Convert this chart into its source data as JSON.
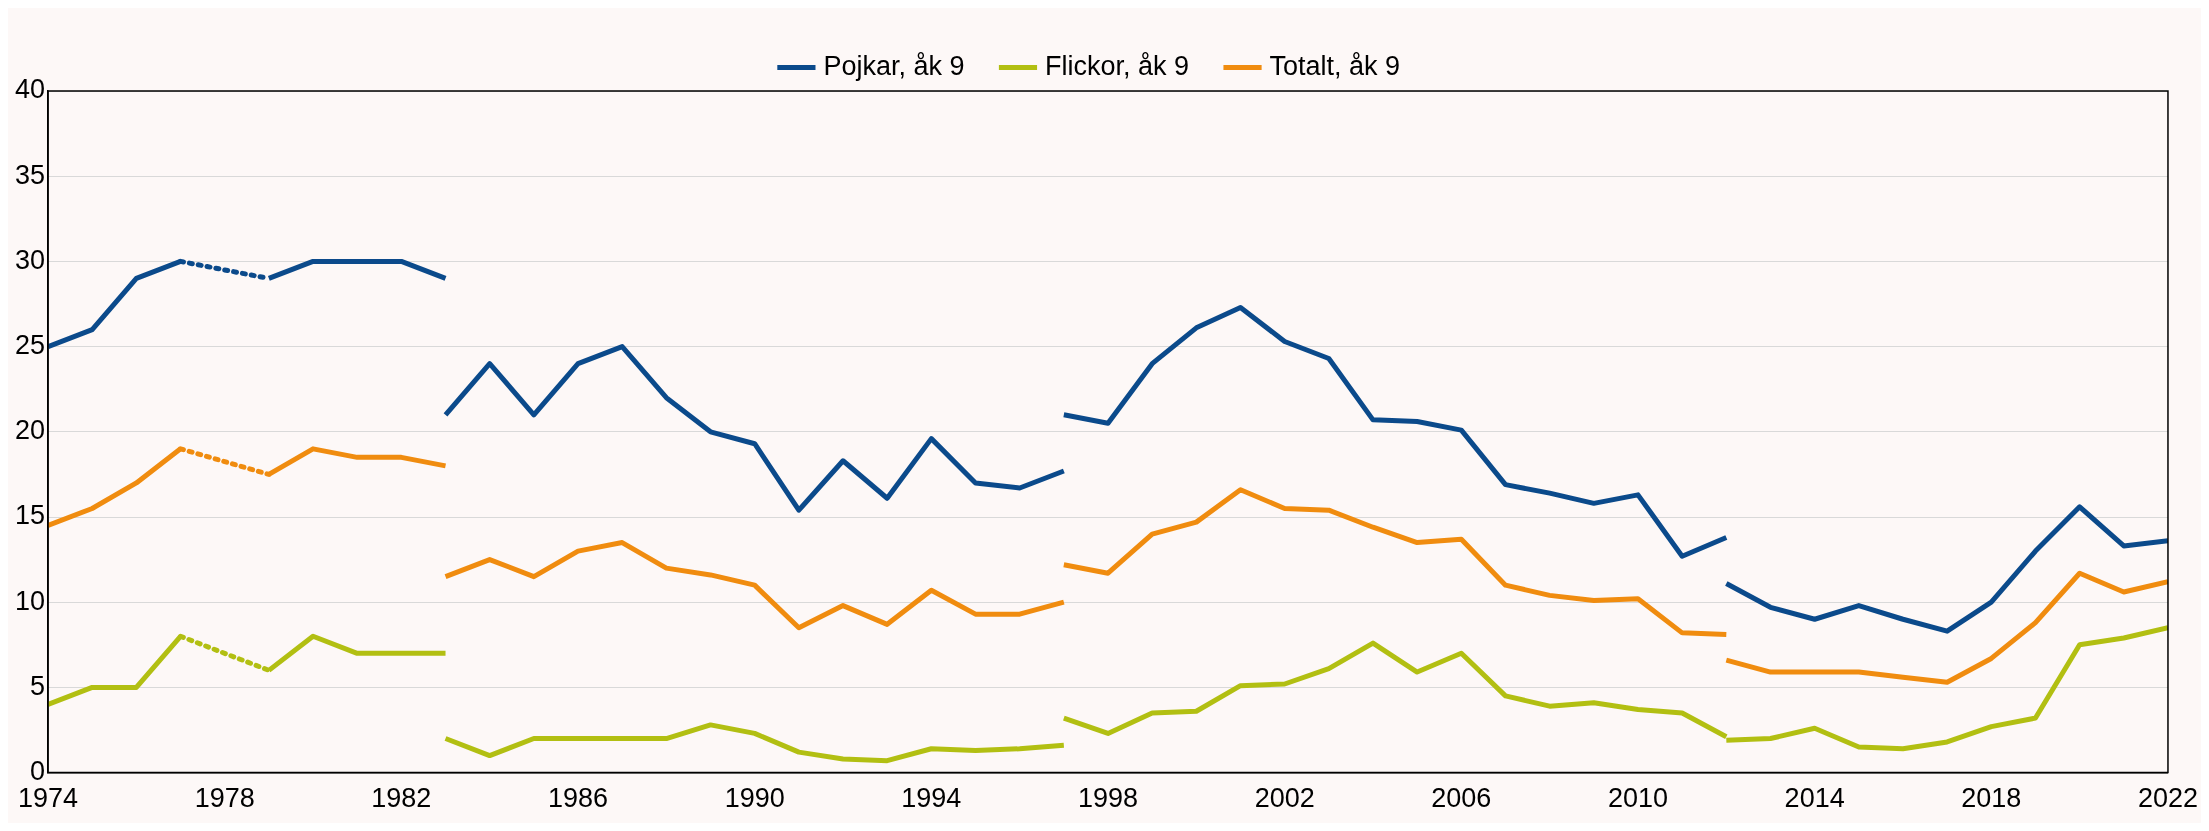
{
  "chart_data": {
    "type": "line",
    "xlim": [
      1974,
      2022
    ],
    "xticks": [
      1974,
      1978,
      1982,
      1986,
      1990,
      1994,
      1998,
      2002,
      2006,
      2010,
      2014,
      2018,
      2022
    ],
    "ylim": [
      0,
      40
    ],
    "yticks": [
      0,
      5,
      10,
      15,
      20,
      25,
      30,
      35,
      40
    ],
    "grid": "y",
    "legend": "top",
    "marker": "none",
    "line_style": "solid",
    "series": [
      {
        "name": "Pojkar, åk 9",
        "color": "#0b4a8b",
        "x": [
          1974,
          1975,
          1976,
          1977
        ],
        "values": [
          25,
          26,
          29,
          30
        ]
      },
      {
        "color": "#0b4a8b",
        "line_style": "dotted",
        "x": [
          1977,
          1979
        ],
        "values": [
          30,
          29
        ]
      },
      {
        "color": "#0b4a8b",
        "x": [
          1979,
          1980,
          1981,
          1982,
          1983
        ],
        "values": [
          29,
          30,
          30,
          30,
          29
        ]
      },
      {
        "color": "#0b4a8b",
        "x": [
          1983,
          1984,
          1985,
          1986,
          1987,
          1988,
          1989,
          1990,
          1991,
          1992,
          1993,
          1994,
          1995,
          1996,
          1997
        ],
        "values": [
          21,
          24,
          21,
          24,
          25,
          22,
          20,
          19.3,
          15.4,
          18.3,
          16.1,
          19.6,
          17,
          16.7,
          17.7
        ]
      },
      {
        "color": "#0b4a8b",
        "x": [
          1997,
          1998,
          1999,
          2000,
          2001,
          2002,
          2003,
          2004,
          2005,
          2006,
          2007,
          2008,
          2009,
          2010,
          2011,
          2012
        ],
        "values": [
          21,
          20.5,
          24,
          26.1,
          27.3,
          25.3,
          24.3,
          20.7,
          20.6,
          20.1,
          16.9,
          16.4,
          15.8,
          16.3,
          12.7,
          13.8
        ]
      },
      {
        "color": "#0b4a8b",
        "x": [
          2012,
          2013,
          2014,
          2015,
          2016,
          2017,
          2018,
          2019,
          2020,
          2021,
          2022
        ],
        "values": [
          11.1,
          9.7,
          9,
          9.8,
          9,
          8.3,
          10,
          13,
          15.6,
          13.3,
          13.6
        ]
      },
      {
        "name": "Flickor, åk 9",
        "color": "#b2bf12",
        "x": [
          1974,
          1975,
          1976,
          1977
        ],
        "values": [
          4,
          5,
          5,
          8
        ]
      },
      {
        "color": "#b2bf12",
        "line_style": "dotted",
        "x": [
          1977,
          1979
        ],
        "values": [
          8,
          6
        ]
      },
      {
        "color": "#b2bf12",
        "x": [
          1979,
          1980,
          1981,
          1982,
          1983
        ],
        "values": [
          6,
          8,
          7,
          7,
          7
        ]
      },
      {
        "color": "#b2bf12",
        "x": [
          1983,
          1984,
          1985,
          1986,
          1987,
          1988,
          1989,
          1990,
          1991,
          1992,
          1993,
          1994,
          1995,
          1996,
          1997
        ],
        "values": [
          2,
          1,
          2,
          2,
          2,
          2,
          2.8,
          2.3,
          1.2,
          0.8,
          0.7,
          1.4,
          1.3,
          1.4,
          1.6
        ]
      },
      {
        "color": "#b2bf12",
        "x": [
          1997,
          1998,
          1999,
          2000,
          2001,
          2002,
          2003,
          2004,
          2005,
          2006,
          2007,
          2008,
          2009,
          2010,
          2011,
          2012
        ],
        "values": [
          3.2,
          2.3,
          3.5,
          3.6,
          5.1,
          5.2,
          6.1,
          7.6,
          5.9,
          7,
          4.5,
          3.9,
          4.1,
          3.7,
          3.5,
          2.1
        ]
      },
      {
        "color": "#b2bf12",
        "x": [
          2012,
          2013,
          2014,
          2015,
          2016,
          2017,
          2018,
          2019,
          2020,
          2021,
          2022
        ],
        "values": [
          1.9,
          2,
          2.6,
          1.5,
          1.4,
          1.8,
          2.7,
          3.2,
          7.5,
          7.9,
          8.5
        ]
      },
      {
        "name": "Totalt, åk 9",
        "color": "#f08c0f",
        "x": [
          1974,
          1975,
          1976,
          1977
        ],
        "values": [
          14.5,
          15.5,
          17,
          19
        ]
      },
      {
        "color": "#f08c0f",
        "line_style": "dotted",
        "x": [
          1977,
          1979
        ],
        "values": [
          19,
          17.5
        ]
      },
      {
        "color": "#f08c0f",
        "x": [
          1979,
          1980,
          1981,
          1982,
          1983
        ],
        "values": [
          17.5,
          19,
          18.5,
          18.5,
          18
        ]
      },
      {
        "color": "#f08c0f",
        "x": [
          1983,
          1984,
          1985,
          1986,
          1987,
          1988,
          1989,
          1990,
          1991,
          1992,
          1993,
          1994,
          1995,
          1996,
          1997
        ],
        "values": [
          11.5,
          12.5,
          11.5,
          13,
          13.5,
          12,
          11.6,
          11,
          8.5,
          9.8,
          8.7,
          10.7,
          9.3,
          9.3,
          10
        ]
      },
      {
        "color": "#f08c0f",
        "x": [
          1997,
          1998,
          1999,
          2000,
          2001,
          2002,
          2003,
          2004,
          2005,
          2006,
          2007,
          2008,
          2009,
          2010,
          2011,
          2012
        ],
        "values": [
          12.2,
          11.7,
          14,
          14.7,
          16.6,
          15.5,
          15.4,
          14.4,
          13.5,
          13.7,
          11,
          10.4,
          10.1,
          10.2,
          8.2,
          8.1
        ]
      },
      {
        "color": "#f08c0f",
        "x": [
          2012,
          2013,
          2014,
          2015,
          2016,
          2017,
          2018,
          2019,
          2020,
          2021,
          2022
        ],
        "values": [
          6.6,
          5.9,
          5.9,
          5.9,
          5.6,
          5.3,
          6.7,
          8.8,
          11.7,
          10.6,
          11.2
        ]
      }
    ]
  }
}
